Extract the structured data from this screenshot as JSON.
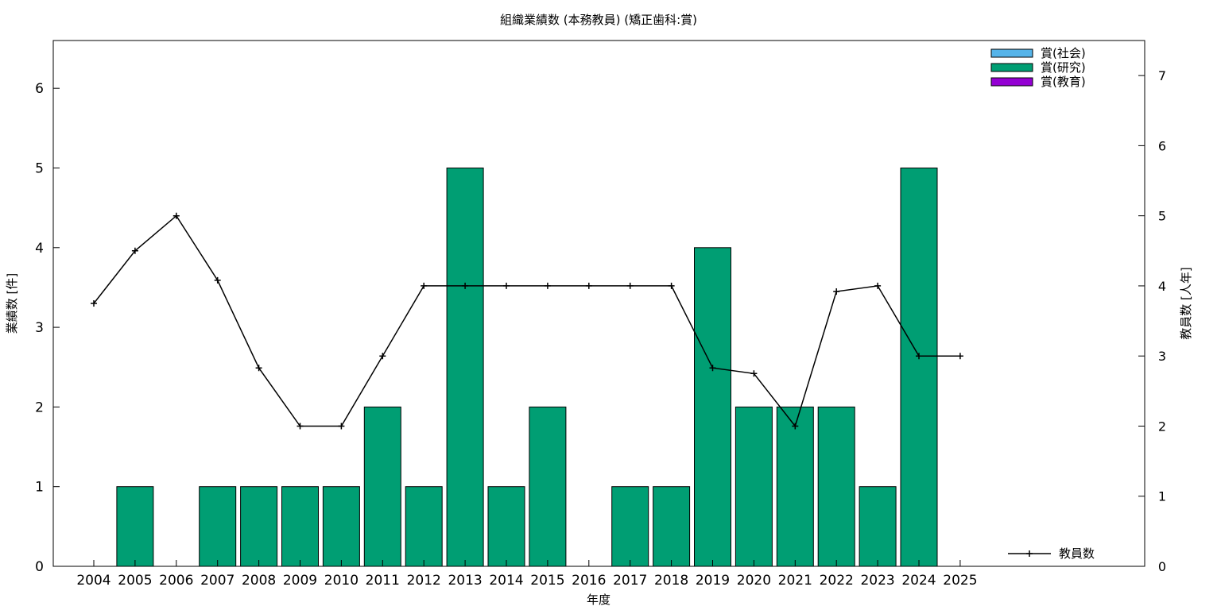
{
  "chart_data": {
    "type": "bar",
    "title": "組織業績数 (本務教員) (矯正歯科:賞)",
    "xlabel": "年度",
    "ylabel": "業績数 [件]",
    "y2label": "教員数 [人年]",
    "categories": [
      "2004",
      "2005",
      "2006",
      "2007",
      "2008",
      "2009",
      "2010",
      "2011",
      "2012",
      "2013",
      "2014",
      "2015",
      "2016",
      "2017",
      "2018",
      "2019",
      "2020",
      "2021",
      "2022",
      "2023",
      "2024",
      "2025"
    ],
    "ylim": [
      0,
      6.6
    ],
    "y2lim": [
      0,
      7.5
    ],
    "yticks": [
      0,
      1,
      2,
      3,
      4,
      5,
      6
    ],
    "y2ticks": [
      0,
      1,
      2,
      3,
      4,
      5,
      6,
      7
    ],
    "grid": false,
    "bar_series": [
      {
        "name": "賞(社会)",
        "color": "#56b4e9",
        "values": [
          0,
          0,
          0,
          0,
          0,
          0,
          0,
          0,
          0,
          0,
          0,
          0,
          0,
          0,
          0,
          0,
          0,
          0,
          0,
          0,
          0,
          0
        ]
      },
      {
        "name": "賞(研究)",
        "color": "#009e73",
        "values": [
          0,
          1,
          0,
          1,
          1,
          1,
          1,
          2,
          1,
          5,
          1,
          2,
          0,
          1,
          1,
          4,
          2,
          2,
          2,
          1,
          5,
          0
        ]
      },
      {
        "name": "賞(教育)",
        "color": "#9400d3",
        "values": [
          0,
          0,
          0,
          0,
          0,
          0,
          0,
          0,
          0,
          0,
          0,
          0,
          0,
          0,
          0,
          0,
          0,
          0,
          0,
          0,
          0,
          0
        ]
      }
    ],
    "line_series": {
      "name": "教員数",
      "axis": "right",
      "color": "#000000",
      "values": [
        3.75,
        4.5,
        5.0,
        4.08,
        2.83,
        2.0,
        2.0,
        3.0,
        4.0,
        4.0,
        4.0,
        4.0,
        4.0,
        4.0,
        4.0,
        2.83,
        2.75,
        2.0,
        3.92,
        4.0,
        3.0,
        3.0
      ]
    },
    "legend_position": "top-right",
    "line_legend_position": "bottom-right"
  }
}
